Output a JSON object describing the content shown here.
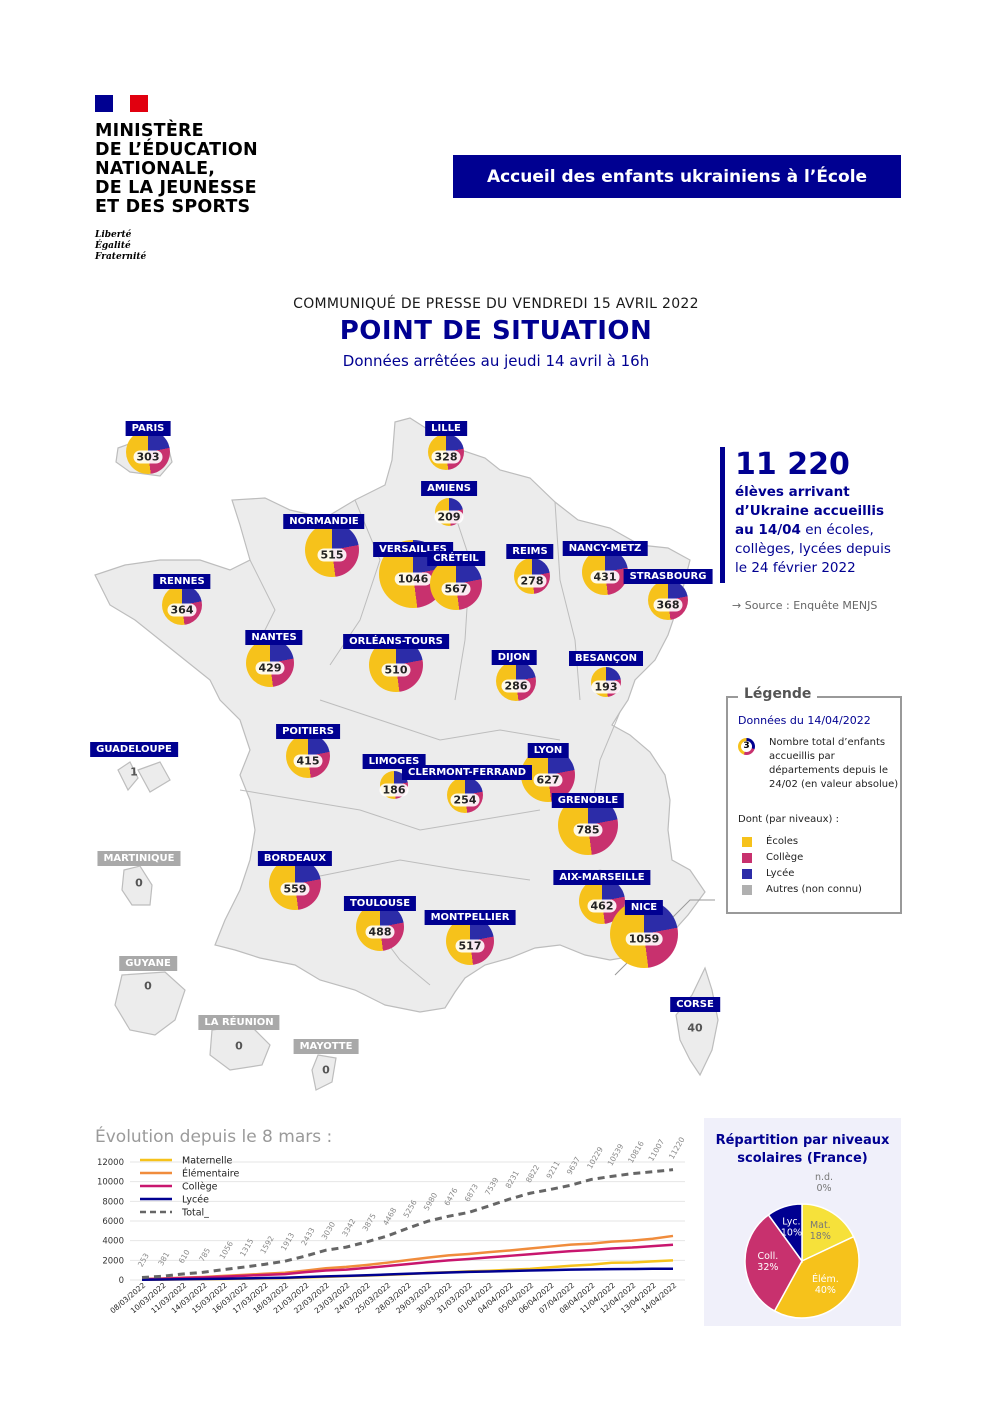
{
  "header": {
    "ministry_lines": [
      "MINISTÈRE",
      "DE L’ÉDUCATION",
      "NATIONALE,",
      "DE LA JEUNESSE",
      "ET DES SPORTS"
    ],
    "motto_lines": [
      "Liberté",
      "Égalité",
      "Fraternité"
    ],
    "banner": "Accueil des enfants ukrainiens à l’École"
  },
  "intro": {
    "press": "COMMUNIQUÉ DE PRESSE DU VENDREDI 15 AVRIL 2022",
    "title": "POINT DE SITUATION",
    "subtitle": "Données arrêtées au jeudi 14 avril à 16h"
  },
  "colors": {
    "blue": "#000091",
    "ecoles": "#f6c21b",
    "college": "#c8316e",
    "lycee": "#2c2ca8",
    "autres": "#b0b0b0",
    "map_fill": "#ececec",
    "map_stroke": "#bdbdbd"
  },
  "regions": [
    {
      "name": "PARIS",
      "value": "303"
    },
    {
      "name": "LILLE",
      "value": "328"
    },
    {
      "name": "AMIENS",
      "value": "209"
    },
    {
      "name": "NORMANDIE",
      "value": "515"
    },
    {
      "name": "VERSAILLES",
      "value": "1046"
    },
    {
      "name": "CRÉTEIL",
      "value": "567"
    },
    {
      "name": "REIMS",
      "value": "278"
    },
    {
      "name": "NANCY-METZ",
      "value": "431"
    },
    {
      "name": "STRASBOURG",
      "value": "368"
    },
    {
      "name": "RENNES",
      "value": "364"
    },
    {
      "name": "NANTES",
      "value": "429"
    },
    {
      "name": "ORLÉANS-TOURS",
      "value": "510"
    },
    {
      "name": "DIJON",
      "value": "286"
    },
    {
      "name": "BESANÇON",
      "value": "193"
    },
    {
      "name": "POITIERS",
      "value": "415"
    },
    {
      "name": "LIMOGES",
      "value": "186"
    },
    {
      "name": "CLERMONT-FERRAND",
      "value": "254"
    },
    {
      "name": "LYON",
      "value": "627"
    },
    {
      "name": "GRENOBLE",
      "value": "785"
    },
    {
      "name": "BORDEAUX",
      "value": "559"
    },
    {
      "name": "TOULOUSE",
      "value": "488"
    },
    {
      "name": "MONTPELLIER",
      "value": "517"
    },
    {
      "name": "AIX-MARSEILLE",
      "value": "462"
    },
    {
      "name": "NICE",
      "value": "1059"
    },
    {
      "name": "CORSE",
      "value": "40"
    },
    {
      "name": "GUADELOUPE",
      "value": "1"
    },
    {
      "name": "MARTINIQUE",
      "value": "0"
    },
    {
      "name": "GUYANE",
      "value": "0"
    },
    {
      "name": "LA RÉUNION",
      "value": "0"
    },
    {
      "name": "MAYOTTE",
      "value": "0"
    }
  ],
  "stat": {
    "number": "11 220",
    "line1": "élèves arrivant",
    "line2": "d’Ukraine accueillis",
    "line3_bold": "au 14/04",
    "line3_rest": " en écoles,",
    "line4": "collèges, lycées depuis",
    "line5": "le 24 février 2022",
    "source": "→ Source : Enquête MENJS"
  },
  "legend": {
    "title": "Légende",
    "date": "Données du 14/04/2022",
    "pie_sample": "3",
    "desc": "Nombre total d’enfants accueillis par départements depuis le 24/02 (en valeur absolue)",
    "dont": "Dont (par niveaux) :",
    "items": [
      "Écoles",
      "Collège",
      "Lycée",
      "Autres (non connu)"
    ]
  },
  "evolution": {
    "title": "Évolution depuis le 8 mars :"
  },
  "repartition": {
    "title_line1": "Répartition par niveaux",
    "title_line2": "scolaires (France)"
  },
  "chart_data": [
    {
      "type": "line",
      "title": "Évolution depuis le 8 mars :",
      "x": [
        "08/03/2022",
        "10/03/2022",
        "11/03/2022",
        "14/03/2022",
        "15/03/2022",
        "16/03/2022",
        "17/03/2022",
        "18/03/2022",
        "21/03/2022",
        "22/03/2022",
        "23/03/2022",
        "24/03/2022",
        "25/03/2022",
        "28/03/2022",
        "29/03/2022",
        "30/03/2022",
        "31/03/2022",
        "01/04/2022",
        "04/04/2022",
        "05/04/2022",
        "06/04/2022",
        "07/04/2022",
        "08/04/2022",
        "11/04/2022",
        "12/04/2022",
        "13/04/2022",
        "14/04/2022"
      ],
      "ylim": [
        0,
        12000
      ],
      "yticks": [
        0,
        2000,
        4000,
        6000,
        8000,
        10000,
        12000
      ],
      "grid": true,
      "legend_position": "top-left",
      "series": [
        {
          "name": "Maternelle",
          "color": "#f6c21b",
          "values": [
            20,
            35,
            60,
            75,
            100,
            130,
            170,
            195,
            250,
            320,
            400,
            450,
            520,
            600,
            720,
            790,
            880,
            940,
            1040,
            1130,
            1300,
            1450,
            1560,
            1750,
            1780,
            1900,
            2000
          ]
        },
        {
          "name": "Élémentaire",
          "color": "#f08c3c",
          "values": [
            100,
            150,
            240,
            310,
            420,
            520,
            640,
            740,
            960,
            1200,
            1330,
            1530,
            1760,
            2020,
            2270,
            2500,
            2650,
            2830,
            3000,
            3200,
            3400,
            3600,
            3700,
            3900,
            4000,
            4200,
            4480
          ]
        },
        {
          "name": "Collège",
          "color": "#c8166e",
          "values": [
            80,
            130,
            200,
            250,
            340,
            430,
            520,
            600,
            800,
            960,
            1060,
            1230,
            1420,
            1620,
            1820,
            2000,
            2140,
            2300,
            2460,
            2620,
            2780,
            2940,
            3050,
            3200,
            3300,
            3450,
            3590
          ]
        },
        {
          "name": "Lycée",
          "color": "#000091",
          "values": [
            30,
            50,
            80,
            100,
            130,
            160,
            200,
            230,
            300,
            370,
            420,
            480,
            560,
            640,
            700,
            760,
            820,
            870,
            920,
            970,
            1010,
            1050,
            1080,
            1100,
            1120,
            1140,
            1150
          ]
        },
        {
          "name": "Total_",
          "color": "#666666",
          "dashed": true,
          "values": [
            253,
            381,
            610,
            785,
            1056,
            1315,
            1592,
            1913,
            2433,
            3030,
            3342,
            3875,
            4468,
            5256,
            5980,
            6476,
            6873,
            7539,
            8231,
            8822,
            9211,
            9637,
            10229,
            10539,
            10816,
            11007,
            11220
          ],
          "labels": [
            "253",
            "381",
            "610",
            "785",
            "1056",
            "1315",
            "1592",
            "1913",
            "2433",
            "3030",
            "3342",
            "3875",
            "4468",
            "5256",
            "5980",
            "6476",
            "6873",
            "7539",
            "8231",
            "8822",
            "9211",
            "9637",
            "10229",
            "10539",
            "10816",
            "11007",
            "11220"
          ]
        }
      ]
    },
    {
      "type": "pie",
      "title": "Répartition par niveaux scolaires (France)",
      "slices": [
        {
          "label": "Mat.",
          "pct": "18%",
          "value": 18,
          "color": "#f6e13a"
        },
        {
          "label": "Élém.",
          "pct": "40%",
          "value": 40,
          "color": "#f6c21b"
        },
        {
          "label": "Coll.",
          "pct": "32%",
          "value": 32,
          "color": "#c8316e"
        },
        {
          "label": "Lyc.",
          "pct": "10%",
          "value": 10,
          "color": "#000091"
        },
        {
          "label": "n.d.",
          "pct": "0%",
          "value": 0,
          "color": "#b0b0b0"
        }
      ]
    }
  ]
}
